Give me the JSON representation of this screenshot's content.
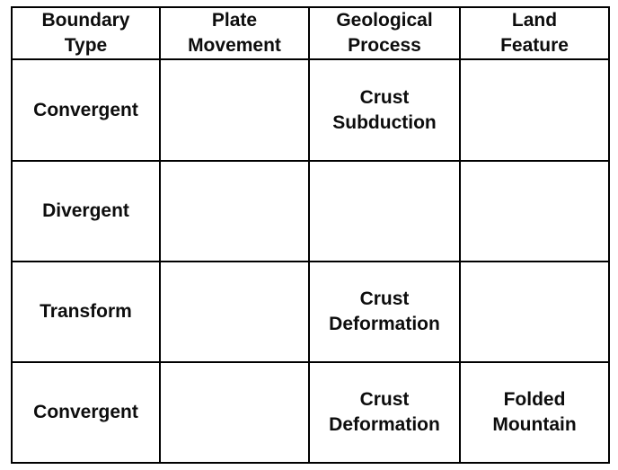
{
  "table": {
    "title": "plate-boundaries-table",
    "headers": [
      "Boundary\nType",
      "Plate\nMovement",
      "Geological\nProcess",
      "Land\nFeature"
    ],
    "rows": [
      [
        "Convergent",
        "",
        "Crust\nSubduction",
        ""
      ],
      [
        "Divergent",
        "",
        "",
        ""
      ],
      [
        "Transform",
        "",
        "Crust\nDeformation",
        ""
      ],
      [
        "Convergent",
        "",
        "Crust\nDeformation",
        "Folded\nMountain"
      ]
    ],
    "colors": {
      "border": "#000000",
      "text": "#0d0d0d",
      "background": "#ffffff"
    }
  }
}
